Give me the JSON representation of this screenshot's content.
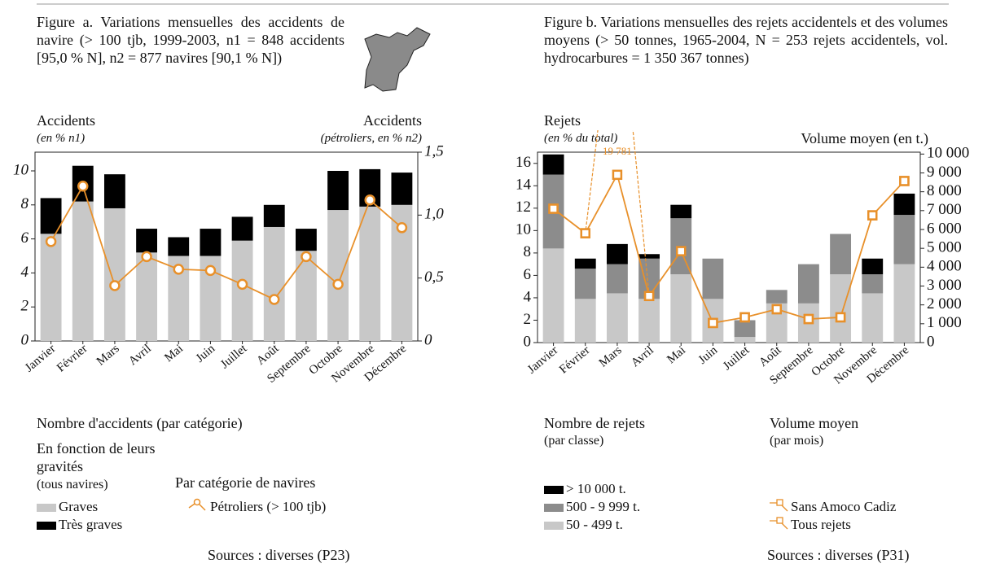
{
  "chart_data": [
    {
      "type": "bar",
      "title": "Figure a. Variations mensuelles des accidents de navire (> 100 tjb, 1999-2003, n1 = 848 accidents [95,0 % N], n2 = 877 navires [90,1 % N])",
      "y_label": "Accidents",
      "y_sublabel": "(en % n1)",
      "y2_label": "Accidents",
      "y2_sublabel": "(pétroliers, en % n2)",
      "categories": [
        "Janvier",
        "Février",
        "Mars",
        "Avril",
        "Mai",
        "Juin",
        "Juillet",
        "Août",
        "Septembre",
        "Octobre",
        "Novembre",
        "Décembre"
      ],
      "series": [
        {
          "name": "Graves",
          "color": "#c8c8c8",
          "values": [
            6.3,
            8.2,
            7.8,
            5.2,
            5.0,
            5.0,
            5.9,
            6.7,
            5.3,
            7.7,
            7.9,
            8.0
          ]
        },
        {
          "name": "Très graves",
          "color": "#000000",
          "values": [
            2.1,
            2.1,
            2.0,
            1.4,
            1.1,
            1.6,
            1.4,
            1.3,
            1.3,
            2.3,
            2.2,
            1.9
          ]
        },
        {
          "name": "Pétroliers (> 100 tjb)",
          "color": "#e8902a",
          "axis": "y2",
          "marker": "circle",
          "values": [
            0.79,
            1.23,
            0.44,
            0.67,
            0.57,
            0.56,
            0.45,
            0.33,
            0.67,
            0.45,
            1.12,
            0.9
          ]
        }
      ],
      "ylim": [
        0,
        11.1
      ],
      "yticks": [
        0,
        2,
        4,
        6,
        8,
        10
      ],
      "y2lim": [
        0,
        1.5
      ],
      "y2ticks": [
        0,
        {
          "value": 0.5,
          "label": "0,5"
        },
        {
          "value": 1.0,
          "label": "1,0"
        },
        {
          "value": 1.5,
          "label": "1,5"
        }
      ],
      "legend_titles": [
        "Nombre d'accidents (par catégorie)",
        "En fonction de leurs gravités",
        "(tous navires)",
        "Par catégorie de navires"
      ],
      "source": "Sources : diverses (P23)"
    },
    {
      "type": "bar",
      "title": "Figure b. Variations mensuelles des rejets accidentels et des volumes moyens (> 50 tonnes, 1965-2004, N = 253 rejets accidentels, vol. hydrocarbures = 1 350 367 tonnes)",
      "y_label": "Rejets",
      "y_sublabel": "(en % du total)",
      "y2_label": "Volume moyen (en t.)",
      "categories": [
        "Janvier",
        "Février",
        "Mars",
        "Avril",
        "Mai",
        "Juin",
        "Juillet",
        "Août",
        "Septembre",
        "Octobre",
        "Novembre",
        "Décembre"
      ],
      "series": [
        {
          "name": "50 - 499 t.",
          "color": "#c8c8c8",
          "values": [
            8.4,
            3.9,
            4.4,
            3.9,
            6.1,
            3.9,
            0.5,
            3.5,
            3.5,
            6.1,
            4.4,
            7.0
          ]
        },
        {
          "name": "500 - 9 999 t.",
          "color": "#8c8c8c",
          "values": [
            6.6,
            2.7,
            2.6,
            3.6,
            5.0,
            3.6,
            1.5,
            1.2,
            3.5,
            3.6,
            1.7,
            4.4
          ]
        },
        {
          "name": "> 10 000 t.",
          "color": "#000000",
          "values": [
            1.8,
            0.9,
            1.8,
            0.4,
            1.2,
            0,
            0,
            0,
            0,
            0,
            1.4,
            1.9
          ]
        },
        {
          "name": "Tous rejets",
          "color": "#e8902a",
          "axis": "y2",
          "marker": "square",
          "line_style": "dashed",
          "values": [
            7100,
            5800,
            19781,
            2470,
            4850,
            1040,
            1340,
            1770,
            1250,
            1340,
            6750,
            8570
          ],
          "value_labels": [
            null,
            null,
            "19 781",
            null,
            null,
            null,
            null,
            null,
            null,
            null,
            null,
            null
          ]
        },
        {
          "name": "Sans Amoco Cadiz",
          "color": "#e8902a",
          "axis": "y2",
          "marker": "square",
          "values": [
            7100,
            5800,
            8900,
            2470,
            4850,
            1040,
            1340,
            1770,
            1250,
            1340,
            6750,
            8570
          ]
        }
      ],
      "ylim": [
        0,
        17
      ],
      "yticks": [
        0,
        2,
        4,
        6,
        8,
        10,
        12,
        14,
        16
      ],
      "y2lim": [
        0,
        10100
      ],
      "y2ticks": [
        0,
        {
          "value": 1000,
          "label": "1 000"
        },
        {
          "value": 2000,
          "label": "2 000"
        },
        {
          "value": 3000,
          "label": "3 000"
        },
        {
          "value": 4000,
          "label": "4 000"
        },
        {
          "value": 5000,
          "label": "5 000"
        },
        {
          "value": 6000,
          "label": "6 000"
        },
        {
          "value": 7000,
          "label": "7 000"
        },
        {
          "value": 8000,
          "label": "8 000"
        },
        {
          "value": 9000,
          "label": "9 000"
        },
        {
          "value": 10000,
          "label": "10 000"
        }
      ],
      "legend_titles": [
        "Nombre de rejets",
        "(par classe)",
        "Volume moyen",
        "(par mois)"
      ],
      "source": "Sources : diverses (P31)"
    }
  ]
}
